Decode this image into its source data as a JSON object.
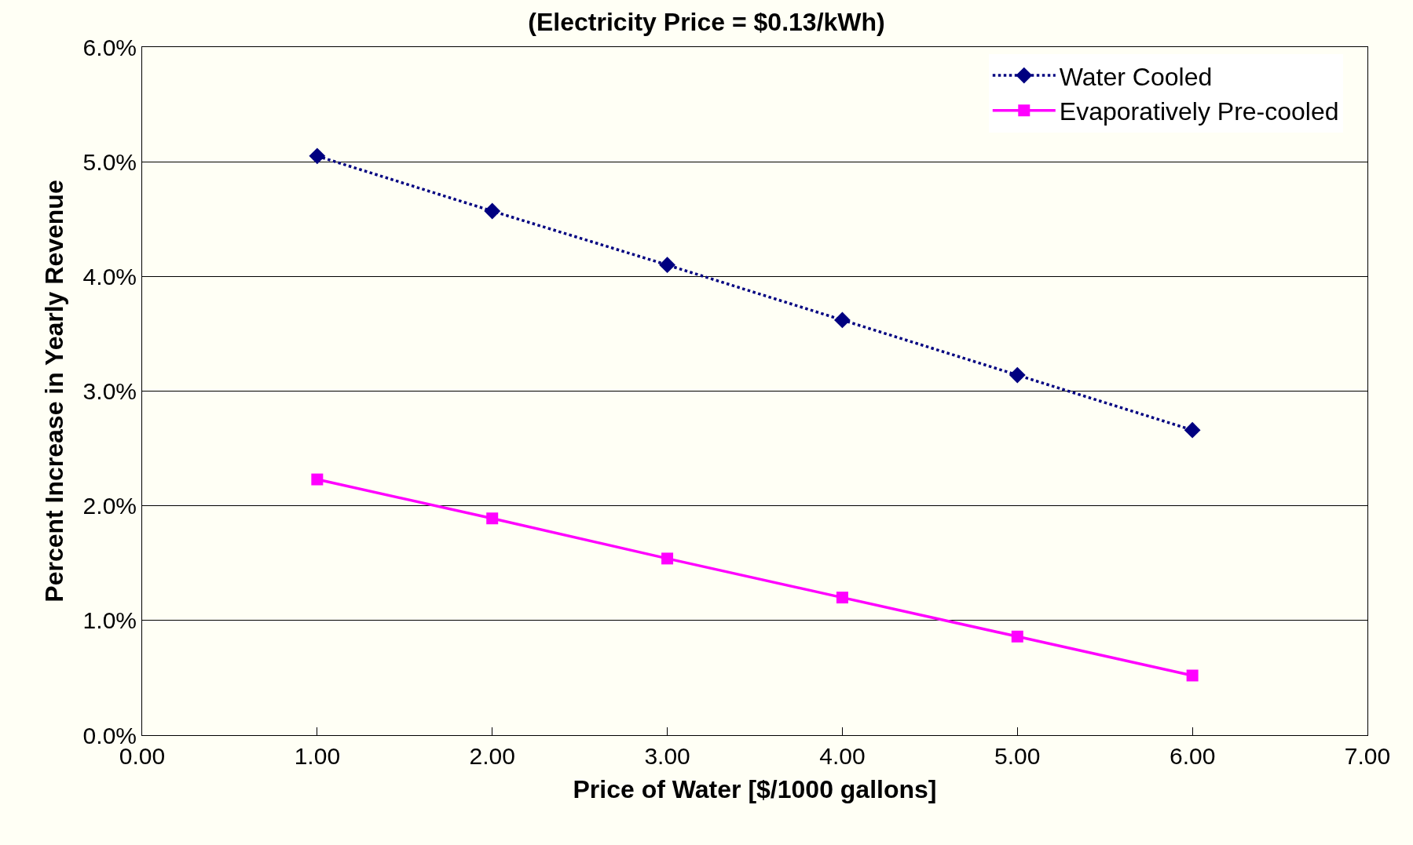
{
  "chart_data": {
    "type": "line",
    "title": "(Electricity Price = $0.13/kWh)",
    "xlabel": "Price of Water [$/1000 gallons]",
    "ylabel": "Percent Increase in Yearly Revenue",
    "x": [
      1,
      2,
      3,
      4,
      5,
      6
    ],
    "series": [
      {
        "name": "Water Cooled",
        "color": "#000080",
        "marker": "diamond",
        "line_style": "dotted",
        "values": [
          5.05,
          4.57,
          4.1,
          3.62,
          3.14,
          2.66
        ]
      },
      {
        "name": "Evaporatively Pre-cooled",
        "color": "#ff00ff",
        "marker": "square",
        "line_style": "solid",
        "values": [
          2.23,
          1.89,
          1.54,
          1.2,
          0.86,
          0.52
        ]
      }
    ],
    "xlim": [
      0,
      7
    ],
    "xticks": [
      {
        "value": 0,
        "label": "0.00"
      },
      {
        "value": 1,
        "label": "1.00"
      },
      {
        "value": 2,
        "label": "2.00"
      },
      {
        "value": 3,
        "label": "3.00"
      },
      {
        "value": 4,
        "label": "4.00"
      },
      {
        "value": 5,
        "label": "5.00"
      },
      {
        "value": 6,
        "label": "6.00"
      },
      {
        "value": 7,
        "label": "7.00"
      }
    ],
    "ylim": [
      0,
      6
    ],
    "yticks": [
      {
        "value": 0,
        "label": "0.0%"
      },
      {
        "value": 1,
        "label": "1.0%"
      },
      {
        "value": 2,
        "label": "2.0%"
      },
      {
        "value": 3,
        "label": "3.0%"
      },
      {
        "value": 4,
        "label": "4.0%"
      },
      {
        "value": 5,
        "label": "5.0%"
      },
      {
        "value": 6,
        "label": "6.0%"
      }
    ],
    "grid": "y",
    "legend": "top right"
  }
}
